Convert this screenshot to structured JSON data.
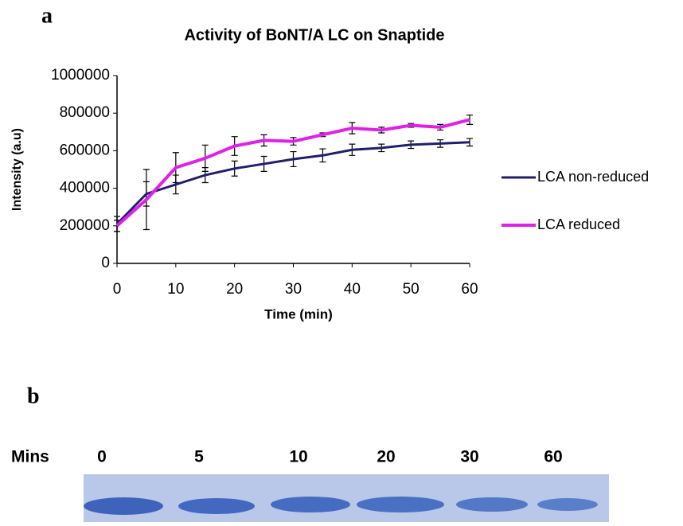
{
  "panels": [
    "a",
    "b"
  ],
  "chart_data": {
    "type": "line",
    "title": "Activity of BoNT/A LC on Snaptide",
    "xlabel": "Time (min)",
    "ylabel": "Intensity (a.u)",
    "x": [
      0,
      5,
      10,
      15,
      20,
      25,
      30,
      35,
      40,
      45,
      50,
      55,
      60
    ],
    "series": [
      {
        "name": "LCA non-reduced",
        "color": "#1f1f6e",
        "values": [
          210000,
          370000,
          420000,
          470000,
          505000,
          530000,
          555000,
          575000,
          605000,
          615000,
          632000,
          638000,
          645000
        ],
        "errors": [
          40000,
          65000,
          50000,
          40000,
          40000,
          40000,
          40000,
          35000,
          30000,
          20000,
          20000,
          20000,
          20000
        ]
      },
      {
        "name": "LCA reduced",
        "color": "#e020e8",
        "values": [
          200000,
          340000,
          510000,
          560000,
          625000,
          655000,
          650000,
          685000,
          720000,
          710000,
          735000,
          725000,
          765000
        ],
        "errors": [
          30000,
          160000,
          80000,
          70000,
          50000,
          30000,
          20000,
          10000,
          30000,
          15000,
          10000,
          15000,
          25000
        ]
      }
    ],
    "xlim": [
      0,
      60
    ],
    "xticks": [
      0,
      10,
      20,
      30,
      40,
      50,
      60
    ],
    "ylim": [
      0,
      1000000
    ],
    "yticks": [
      0,
      200000,
      400000,
      600000,
      800000,
      1000000
    ],
    "legend": "right"
  },
  "gel": {
    "label": "Mins",
    "lanes": [
      "0",
      "5",
      "10",
      "20",
      "30",
      "60"
    ]
  }
}
